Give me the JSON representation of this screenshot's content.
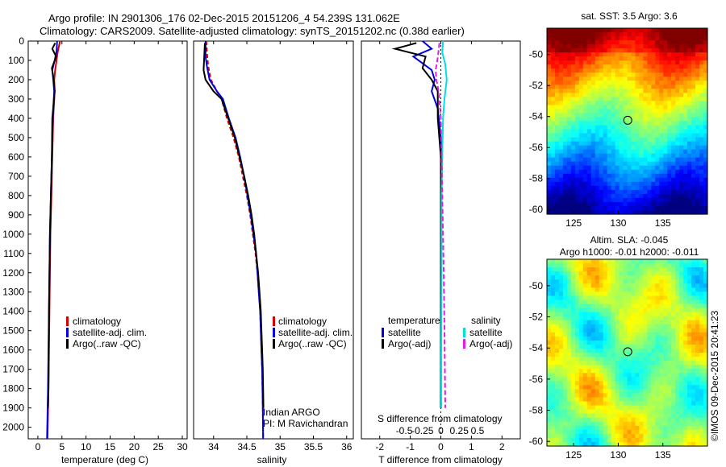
{
  "header": {
    "line1": "Argo profile: IN 2901306_176 02-Dec-2015 20151206_4 54.239S 131.062E",
    "line2": "Climatology: CARS2009. Satellite-adjusted climatology: synTS_20151202.nc (0.38d earlier)"
  },
  "colors": {
    "climatology": "#d40000",
    "satellite": "#0000e0",
    "argo": "#000000",
    "sal_satellite": "#00e0e0",
    "sal_argo": "#e020e0"
  },
  "chart_data": [
    {
      "type": "line",
      "panel": "temperature",
      "xlabel": "temperature (deg C)",
      "xlim": [
        -2,
        31
      ],
      "xticks": [
        "0",
        "5",
        "10",
        "15",
        "20",
        "25",
        "30"
      ],
      "ylim": [
        0,
        2060
      ],
      "yticks": [
        "0",
        "100",
        "200",
        "300",
        "400",
        "500",
        "600",
        "700",
        "800",
        "900",
        "1000",
        "1100",
        "1200",
        "1300",
        "1400",
        "1500",
        "1600",
        "1700",
        "1800",
        "1900",
        "2000"
      ],
      "legend": [
        "climatology",
        "satellite-adj. clim.",
        "Argo(..raw -QC)"
      ],
      "series": [
        {
          "name": "climatology",
          "points": [
            [
              4.6,
              0
            ],
            [
              4.1,
              60
            ],
            [
              3.6,
              150
            ],
            [
              3.4,
              200
            ],
            [
              3.5,
              260
            ],
            [
              3.2,
              400
            ],
            [
              3.0,
              600
            ],
            [
              2.8,
              800
            ],
            [
              2.6,
              1000
            ],
            [
              2.4,
              1400
            ],
            [
              2.2,
              1800
            ],
            [
              2.0,
              2060
            ]
          ]
        },
        {
          "name": "satellite-adj. clim.",
          "points": [
            [
              4.0,
              0
            ],
            [
              3.9,
              50
            ],
            [
              3.5,
              100
            ],
            [
              3.0,
              150
            ],
            [
              3.2,
              200
            ],
            [
              3.4,
              260
            ],
            [
              3.1,
              400
            ],
            [
              2.9,
              600
            ],
            [
              2.7,
              800
            ],
            [
              2.5,
              1000
            ],
            [
              2.3,
              1400
            ],
            [
              2.1,
              1800
            ],
            [
              1.9,
              2060
            ]
          ]
        },
        {
          "name": "Argo(..raw -QC)",
          "points": [
            [
              3.6,
              10
            ],
            [
              3.0,
              40
            ],
            [
              3.8,
              80
            ],
            [
              2.9,
              140
            ],
            [
              3.3,
              200
            ],
            [
              3.5,
              260
            ],
            [
              3.0,
              400
            ],
            [
              2.9,
              600
            ],
            [
              2.7,
              800
            ],
            [
              2.5,
              1000
            ],
            [
              2.3,
              1400
            ],
            [
              2.2,
              1800
            ],
            [
              2.1,
              1900
            ]
          ]
        }
      ]
    },
    {
      "type": "line",
      "panel": "salinity",
      "xlabel": "salinity",
      "xlim": [
        33.7,
        36.1
      ],
      "xticks": [
        "34",
        "34.5",
        "35",
        "35.5",
        "36"
      ],
      "ylim": [
        0,
        2060
      ],
      "legend": [
        "climatology",
        "satellite-adj. clim.",
        "Argo(..raw -QC)"
      ],
      "annotation": [
        "Indian ARGO",
        "PI: M Ravichandran"
      ],
      "series": [
        {
          "name": "climatology",
          "points": [
            [
              33.89,
              0
            ],
            [
              33.9,
              60
            ],
            [
              33.92,
              130
            ],
            [
              33.96,
              200
            ],
            [
              34.05,
              260
            ],
            [
              34.12,
              300
            ],
            [
              34.2,
              400
            ],
            [
              34.3,
              500
            ],
            [
              34.38,
              600
            ],
            [
              34.44,
              700
            ],
            [
              34.5,
              800
            ],
            [
              34.55,
              900
            ],
            [
              34.59,
              1000
            ],
            [
              34.63,
              1100
            ],
            [
              34.66,
              1200
            ],
            [
              34.68,
              1300
            ],
            [
              34.7,
              1400
            ],
            [
              34.71,
              1500
            ],
            [
              34.72,
              1600
            ],
            [
              34.73,
              1700
            ],
            [
              34.735,
              1800
            ],
            [
              34.74,
              1900
            ],
            [
              34.745,
              2060
            ]
          ]
        },
        {
          "name": "satellite-adj. clim.",
          "points": [
            [
              33.88,
              0
            ],
            [
              33.88,
              80
            ],
            [
              33.9,
              130
            ],
            [
              33.94,
              200
            ],
            [
              34.05,
              260
            ],
            [
              34.14,
              300
            ],
            [
              34.23,
              400
            ],
            [
              34.33,
              500
            ],
            [
              34.4,
              600
            ],
            [
              34.46,
              700
            ],
            [
              34.51,
              800
            ],
            [
              34.56,
              900
            ],
            [
              34.6,
              1000
            ],
            [
              34.64,
              1100
            ],
            [
              34.66,
              1200
            ],
            [
              34.68,
              1300
            ],
            [
              34.7,
              1400
            ],
            [
              34.71,
              1500
            ],
            [
              34.72,
              1600
            ],
            [
              34.73,
              1700
            ],
            [
              34.735,
              1800
            ],
            [
              34.74,
              1900
            ],
            [
              34.745,
              2060
            ]
          ]
        },
        {
          "name": "Argo(..raw -QC)",
          "points": [
            [
              33.87,
              10
            ],
            [
              33.86,
              80
            ],
            [
              33.85,
              150
            ],
            [
              33.88,
              200
            ],
            [
              34.0,
              260
            ],
            [
              34.12,
              300
            ],
            [
              34.22,
              400
            ],
            [
              34.32,
              500
            ],
            [
              34.39,
              600
            ],
            [
              34.46,
              700
            ],
            [
              34.52,
              800
            ],
            [
              34.57,
              900
            ],
            [
              34.61,
              1000
            ],
            [
              34.64,
              1100
            ],
            [
              34.67,
              1200
            ],
            [
              34.69,
              1300
            ],
            [
              34.71,
              1400
            ],
            [
              34.72,
              1500
            ],
            [
              34.73,
              1600
            ],
            [
              34.74,
              1700
            ],
            [
              34.745,
              1800
            ],
            [
              34.75,
              1900
            ]
          ]
        }
      ]
    },
    {
      "type": "line",
      "panel": "differences",
      "xlabel": "T difference from climatology",
      "xlabel2": "S difference from climatology",
      "xlim": [
        -2.6,
        2.6
      ],
      "xticks": [
        "-2",
        "-1",
        "0",
        "1",
        "2"
      ],
      "xticks2": [
        "-0.5",
        "-0.25",
        "0",
        "0.25",
        "0.5"
      ],
      "legend_headers": [
        "temperature",
        "salinity"
      ],
      "legend": [
        "satellite",
        "Argo(-adj)",
        "satellite",
        "Argo(-adj)"
      ],
      "series": [
        {
          "name": "T satellite",
          "points": [
            [
              -0.6,
              0
            ],
            [
              -0.3,
              40
            ],
            [
              -0.9,
              80
            ],
            [
              -0.3,
              150
            ],
            [
              -0.2,
              200
            ],
            [
              -0.3,
              260
            ],
            [
              -0.1,
              350
            ],
            [
              0.0,
              500
            ],
            [
              0.0,
              800
            ],
            [
              0.0,
              1200
            ],
            [
              0.0,
              1600
            ],
            [
              0.0,
              1900
            ]
          ]
        },
        {
          "name": "T Argo(-adj)",
          "points": [
            [
              -0.8,
              10
            ],
            [
              -1.5,
              40
            ],
            [
              -0.5,
              80
            ],
            [
              -0.6,
              140
            ],
            [
              -0.3,
              200
            ],
            [
              -0.1,
              260
            ],
            [
              -0.1,
              400
            ],
            [
              0.0,
              600
            ],
            [
              0.0,
              1000
            ],
            [
              0.0,
              1500
            ],
            [
              0.0,
              1900
            ]
          ]
        },
        {
          "name": "S satellite",
          "points": [
            [
              0.03,
              0
            ],
            [
              0.02,
              60
            ],
            [
              0.06,
              120
            ],
            [
              0.08,
              200
            ],
            [
              0.05,
              300
            ],
            [
              0.03,
              400
            ],
            [
              0.02,
              600
            ],
            [
              0.01,
              800
            ],
            [
              0.01,
              1200
            ],
            [
              0.005,
              1600
            ],
            [
              0.005,
              1900
            ]
          ]
        },
        {
          "name": "S Argo(-adj)",
          "points": [
            [
              -0.02,
              10
            ],
            [
              -0.04,
              80
            ],
            [
              -0.07,
              150
            ],
            [
              -0.06,
              200
            ],
            [
              -0.03,
              260
            ],
            [
              0.0,
              400
            ],
            [
              0.01,
              600
            ],
            [
              0.02,
              800
            ],
            [
              0.03,
              1000
            ],
            [
              0.04,
              1200
            ],
            [
              0.05,
              1500
            ],
            [
              0.06,
              1900
            ]
          ]
        }
      ]
    },
    {
      "type": "heatmap",
      "panel": "sst-map",
      "title": "sat. SST: 3.5 Argo: 3.6",
      "xticks": [
        "125",
        "130",
        "135"
      ],
      "yticks": [
        "-50",
        "-52",
        "-54",
        "-56",
        "-58",
        "-60"
      ],
      "xlim": [
        122,
        140
      ],
      "ylim": [
        -60.3,
        -48.3
      ],
      "marker": [
        131.062,
        -54.239
      ]
    },
    {
      "type": "heatmap",
      "panel": "sla-map",
      "title": "Altim. SLA: -0.045",
      "subtitle": "Argo h1000: -0.01 h2000: -0.011",
      "xticks": [
        "125",
        "130",
        "135"
      ],
      "yticks": [
        "-50",
        "-52",
        "-54",
        "-56",
        "-58",
        "-60"
      ],
      "xlim": [
        122,
        140
      ],
      "ylim": [
        -60.3,
        -48.3
      ],
      "marker": [
        131.062,
        -54.239
      ]
    }
  ],
  "footer_stamp": "©IMOS 09-Dec-2015 20:41:23"
}
